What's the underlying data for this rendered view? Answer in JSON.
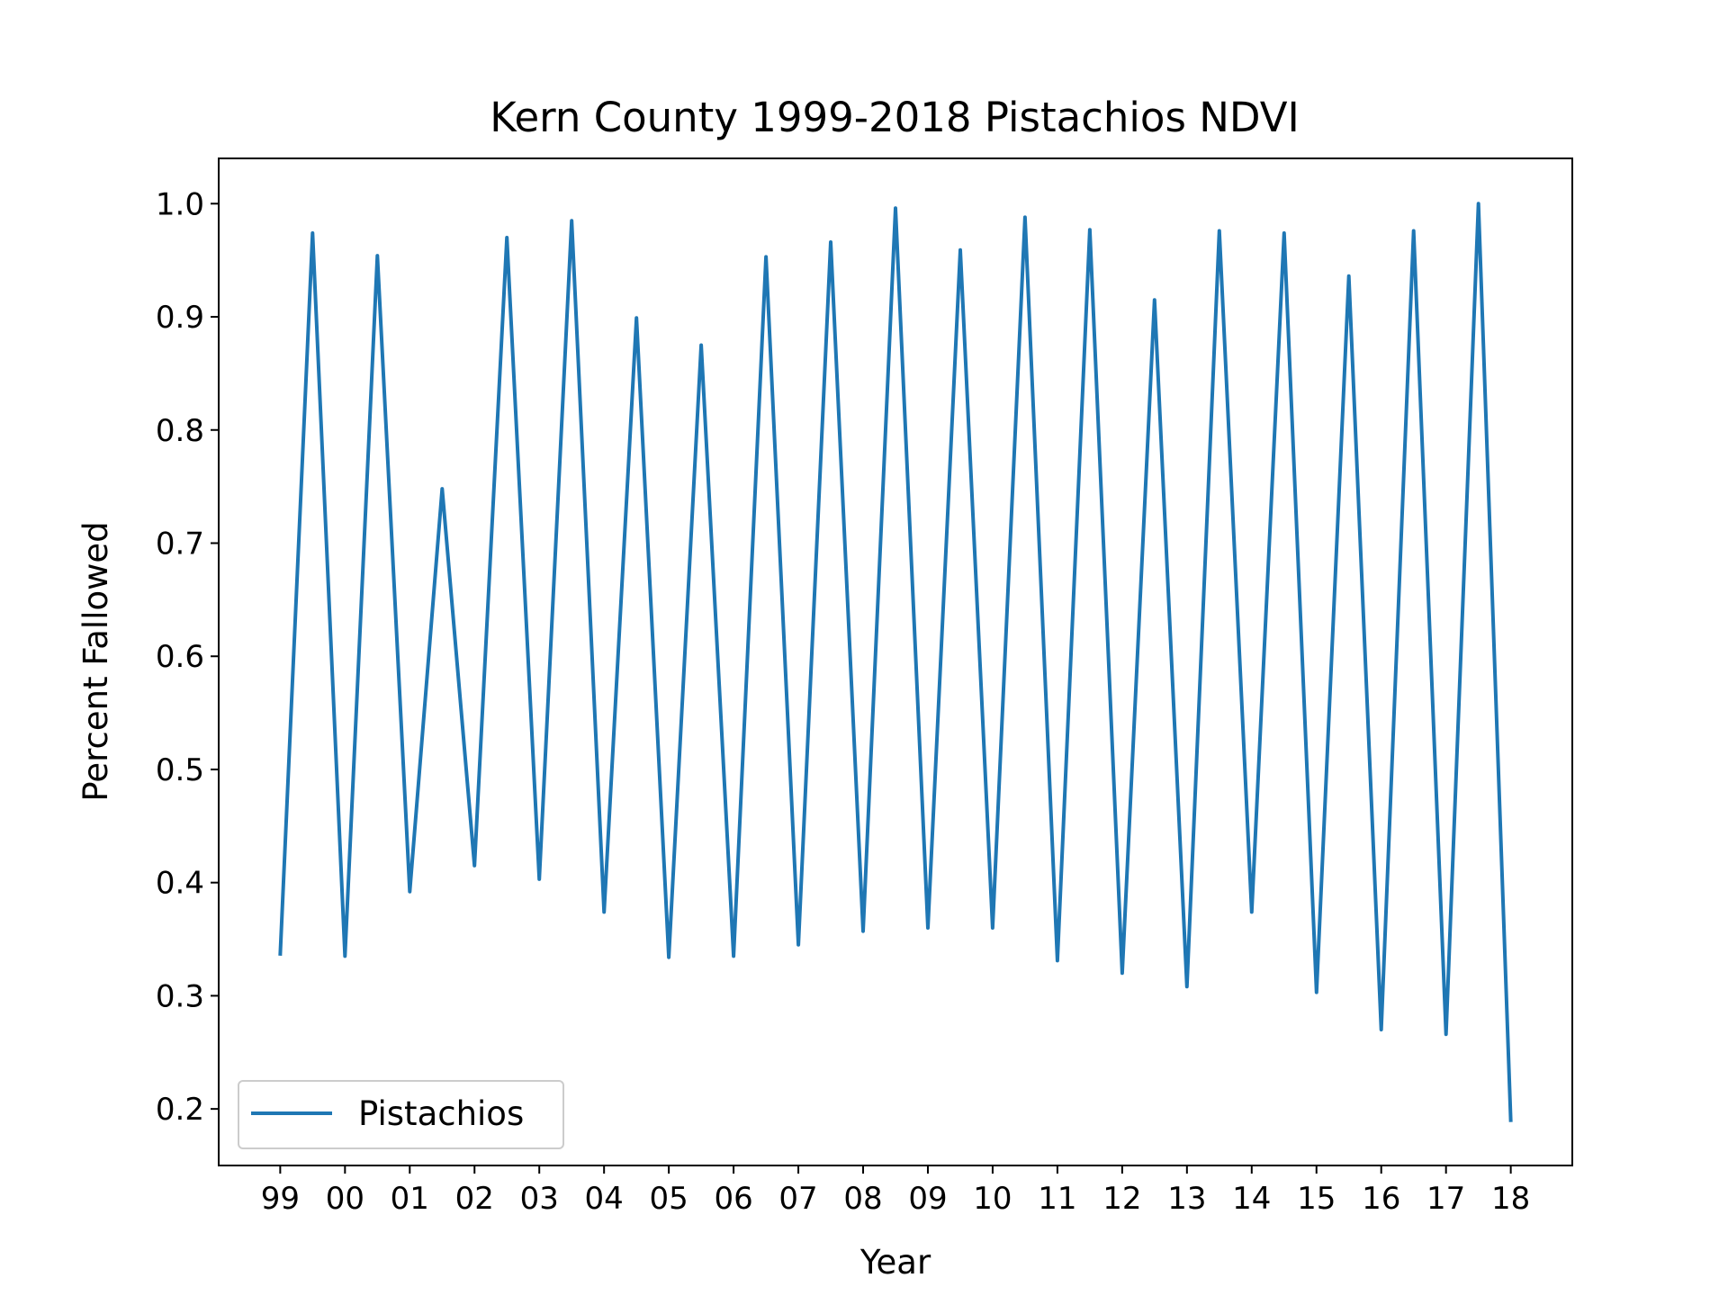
{
  "chart_data": {
    "type": "line",
    "title": "Kern County 1999-2018 Pistachios NDVI",
    "xlabel": "Year",
    "ylabel": "Percent Fallowed",
    "x_tick_labels": [
      "99",
      "00",
      "01",
      "02",
      "03",
      "04",
      "05",
      "06",
      "07",
      "08",
      "09",
      "10",
      "11",
      "12",
      "13",
      "14",
      "15",
      "16",
      "17",
      "18"
    ],
    "yticks": [
      "0.2",
      "0.3",
      "0.4",
      "0.5",
      "0.6",
      "0.7",
      "0.8",
      "0.9",
      "1.0"
    ],
    "ylim": [
      0.15,
      1.04
    ],
    "xlim": [
      -0.95,
      19.95
    ],
    "grid": false,
    "legend_position": "lower-left",
    "series": [
      {
        "name": "Pistachios",
        "color": "#1f77b4",
        "x": [
          0,
          0.5,
          1,
          1.5,
          2,
          2.5,
          3,
          3.5,
          4,
          4.5,
          5,
          5.5,
          6,
          6.5,
          7,
          7.5,
          8,
          8.5,
          9,
          9.5,
          10,
          10.5,
          11,
          11.5,
          12,
          12.5,
          13,
          13.5,
          14,
          14.5,
          15,
          15.5,
          16,
          16.5,
          17,
          17.5,
          18,
          18.5,
          19
        ],
        "values": [
          0.337,
          0.974,
          0.335,
          0.954,
          0.392,
          0.748,
          0.415,
          0.97,
          0.403,
          0.985,
          0.374,
          0.899,
          0.334,
          0.875,
          0.335,
          0.953,
          0.345,
          0.966,
          0.357,
          0.996,
          0.36,
          0.959,
          0.36,
          0.988,
          0.331,
          0.977,
          0.32,
          0.915,
          0.308,
          0.976,
          0.374,
          0.974,
          0.303,
          0.936,
          0.27,
          0.976,
          0.266,
          1.0,
          0.19
        ]
      }
    ]
  }
}
